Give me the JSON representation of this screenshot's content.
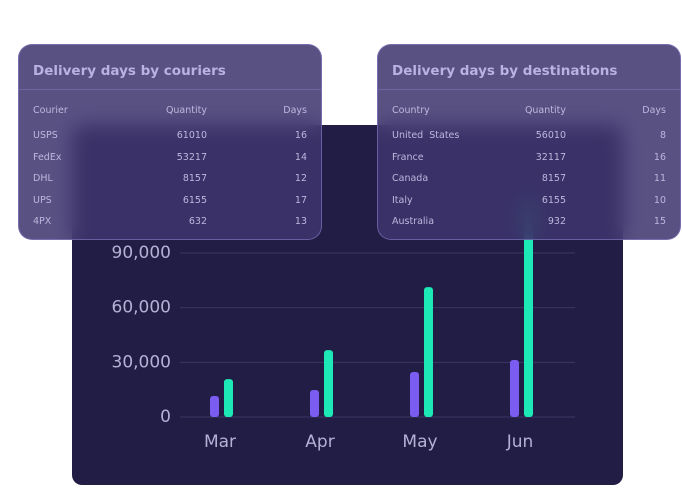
{
  "chart_data": {
    "type": "bar",
    "categories": [
      "Mar",
      "Apr",
      "May",
      "Jun"
    ],
    "series": [
      {
        "color": "#7b5cf0",
        "values": [
          11500,
          14800,
          24700,
          31300
        ]
      },
      {
        "color": "#1de9b6",
        "values": [
          20800,
          36700,
          71300,
          119000
        ]
      }
    ],
    "ylim": [
      0,
      120000
    ],
    "yticks": [
      0,
      {
        "value": 30000,
        "label": "30,000"
      },
      {
        "value": 60000,
        "label": "60,000"
      },
      {
        "value": 90000,
        "label": "90,000"
      }
    ],
    "grid": true
  },
  "tables": [
    {
      "title": "Delivery days by couriers",
      "header": [
        "Courier",
        "Quantity",
        "Days"
      ],
      "rows": [
        [
          "USPS",
          61010,
          16
        ],
        [
          "FedEx",
          53217,
          14
        ],
        [
          "DHL",
          8157,
          12
        ],
        [
          "UPS",
          6155,
          17
        ],
        [
          "4PX",
          632,
          13
        ]
      ]
    },
    {
      "title": "Delivery days by destinations",
      "header": [
        "Country",
        "Quantity",
        "Days"
      ],
      "rows": [
        [
          "United  States",
          56010,
          8
        ],
        [
          "France",
          32117,
          16
        ],
        [
          "Canada",
          8157,
          11
        ],
        [
          "Italy",
          6155,
          10
        ],
        [
          "Australia",
          932,
          15
        ]
      ]
    }
  ]
}
